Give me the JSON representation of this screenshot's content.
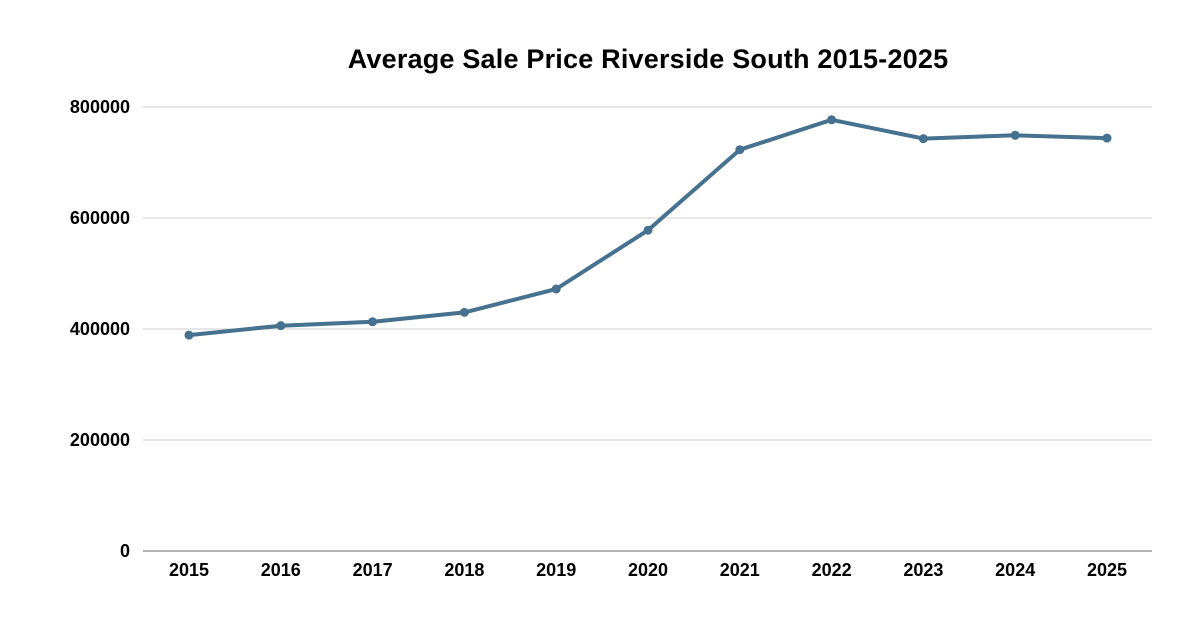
{
  "chart_data": {
    "type": "line",
    "title": "Average Sale Price Riverside South 2015-2025",
    "xlabel": "",
    "ylabel": "",
    "categories": [
      "2015",
      "2016",
      "2017",
      "2018",
      "2019",
      "2020",
      "2021",
      "2022",
      "2023",
      "2024",
      "2025"
    ],
    "series": [
      {
        "values": [
          389000,
          406000,
          413000,
          430000,
          472000,
          578000,
          723000,
          777000,
          743000,
          749000,
          744000
        ],
        "color": "#46718f"
      }
    ],
    "ylim": [
      0,
      800000
    ],
    "yticks": [
      "0",
      "200000",
      "400000",
      "600000",
      "800000"
    ],
    "grid": true,
    "legend": "none"
  }
}
